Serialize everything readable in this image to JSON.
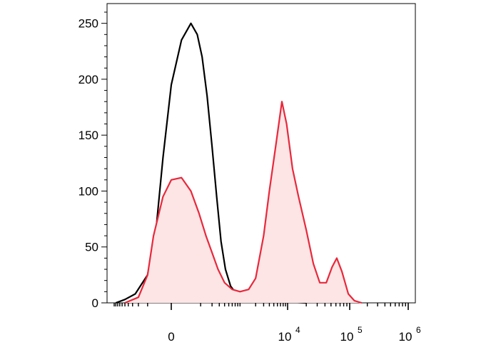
{
  "chart_data": {
    "type": "area",
    "x_scale": "biexponential",
    "ylim": [
      0,
      260
    ],
    "y_ticks": [
      {
        "value": 0,
        "label": "0"
      },
      {
        "value": 50,
        "label": "50"
      },
      {
        "value": 100,
        "label": "100"
      },
      {
        "value": 150,
        "label": "150"
      },
      {
        "value": 200,
        "label": "200"
      },
      {
        "value": 250,
        "label": "250"
      }
    ],
    "x_ticks": [
      {
        "value": 0,
        "label": "0"
      },
      {
        "value": 10000,
        "base": "10",
        "exponent": "4"
      },
      {
        "value": 100000,
        "base": "10",
        "exponent": "5"
      },
      {
        "value": 1000000,
        "base": "10",
        "exponent": "6"
      }
    ],
    "grid": false,
    "series": [
      {
        "style": "line",
        "color": "#000000",
        "points": [
          [
            -900,
            0
          ],
          [
            -500,
            3
          ],
          [
            -250,
            8
          ],
          [
            -100,
            25
          ],
          [
            -50,
            60
          ],
          [
            -20,
            130
          ],
          [
            0,
            195
          ],
          [
            20,
            235
          ],
          [
            50,
            250
          ],
          [
            80,
            240
          ],
          [
            110,
            220
          ],
          [
            150,
            185
          ],
          [
            200,
            140
          ],
          [
            260,
            95
          ],
          [
            330,
            55
          ],
          [
            420,
            30
          ],
          [
            550,
            15
          ],
          [
            750,
            8
          ],
          [
            1000,
            5
          ],
          [
            1500,
            5
          ],
          [
            2500,
            4
          ],
          [
            4000,
            2
          ],
          [
            8000,
            1
          ],
          [
            20000,
            0
          ]
        ]
      },
      {
        "style": "filled",
        "color": "#e8283b",
        "fill": "#fde5e5",
        "points": [
          [
            -500,
            0
          ],
          [
            -200,
            5
          ],
          [
            -100,
            25
          ],
          [
            -60,
            60
          ],
          [
            -20,
            95
          ],
          [
            0,
            110
          ],
          [
            20,
            112
          ],
          [
            50,
            100
          ],
          [
            90,
            80
          ],
          [
            140,
            60
          ],
          [
            200,
            45
          ],
          [
            280,
            30
          ],
          [
            400,
            18
          ],
          [
            600,
            12
          ],
          [
            900,
            10
          ],
          [
            1400,
            12
          ],
          [
            2000,
            22
          ],
          [
            3000,
            60
          ],
          [
            4000,
            100
          ],
          [
            5500,
            140
          ],
          [
            7500,
            180
          ],
          [
            9500,
            160
          ],
          [
            12000,
            120
          ],
          [
            15000,
            95
          ],
          [
            20000,
            65
          ],
          [
            26000,
            35
          ],
          [
            33000,
            18
          ],
          [
            42000,
            18
          ],
          [
            52000,
            32
          ],
          [
            62000,
            40
          ],
          [
            75000,
            28
          ],
          [
            95000,
            8
          ],
          [
            120000,
            2
          ],
          [
            160000,
            0
          ]
        ]
      }
    ]
  }
}
